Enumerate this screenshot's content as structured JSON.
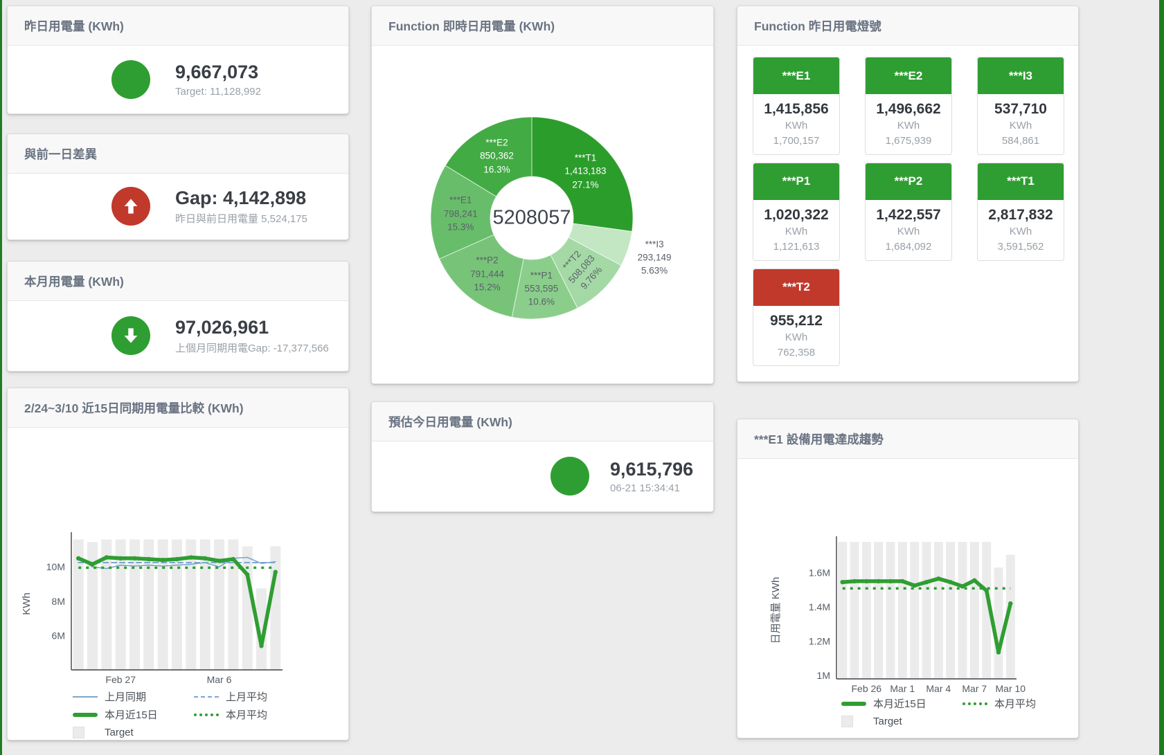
{
  "page": {
    "background": "#ececec",
    "edge_strip_color": "#1e7d21",
    "accent_green": "#2f9e32",
    "accent_red": "#c0392b"
  },
  "cards": {
    "yesterday": {
      "title": "昨日用電量 (KWh)",
      "value": "9,667,073",
      "subtitle": "Target: 11,128,992",
      "indicator": "circle",
      "indicator_color": "#2f9e32"
    },
    "gap": {
      "title": "與前一日差異",
      "value": "Gap: 4,142,898",
      "subtitle": "昨日與前日用電量 5,524,175",
      "indicator": "arrow-up",
      "indicator_color": "#c0392b"
    },
    "month": {
      "title": "本月用電量 (KWh)",
      "value": "97,026,961",
      "subtitle": "上個月同期用電Gap: -17,377,566",
      "indicator": "arrow-down",
      "indicator_color": "#2f9e32"
    },
    "estimate": {
      "title": "預估今日用電量 (KWh)",
      "value": "9,615,796",
      "subtitle": "06-21 15:34:41",
      "indicator": "circle",
      "indicator_color": "#2f9e32"
    },
    "lights": {
      "title": "Function 昨日用電燈號",
      "tiles": [
        {
          "name": "***E1",
          "value": "1,415,856",
          "unit": "KWh",
          "target": "1,700,157",
          "status": "green",
          "header_color": "#2f9e32"
        },
        {
          "name": "***E2",
          "value": "1,496,662",
          "unit": "KWh",
          "target": "1,675,939",
          "status": "green",
          "header_color": "#2f9e32"
        },
        {
          "name": "***I3",
          "value": "537,710",
          "unit": "KWh",
          "target": "584,861",
          "status": "green",
          "header_color": "#2f9e32"
        },
        {
          "name": "***P1",
          "value": "1,020,322",
          "unit": "KWh",
          "target": "1,121,613",
          "status": "green",
          "header_color": "#2f9e32"
        },
        {
          "name": "***P2",
          "value": "1,422,557",
          "unit": "KWh",
          "target": "1,684,092",
          "status": "green",
          "header_color": "#2f9e32"
        },
        {
          "name": "***T1",
          "value": "2,817,832",
          "unit": "KWh",
          "target": "3,591,562",
          "status": "green",
          "header_color": "#2f9e32"
        },
        {
          "name": "***T2",
          "value": "955,212",
          "unit": "KWh",
          "target": "762,358",
          "status": "red",
          "header_color": "#c0392b"
        }
      ]
    }
  },
  "chart_data": [
    {
      "id": "function-realtime-donut",
      "type": "pie",
      "title": "Function 即時日用電量 (KWh)",
      "center_label": "5208057",
      "legend_position": "none",
      "slices": [
        {
          "name": "***T1",
          "value": 1413183,
          "value_label": "1,413,183",
          "pct": 27.1,
          "pct_label": "27.1%",
          "color": "#2b9d2b",
          "label_color": "#ffffff"
        },
        {
          "name": "***I3",
          "value": 293149,
          "value_label": "293,149",
          "pct": 5.63,
          "pct_label": "5.63%",
          "color": "#c2e7c2",
          "label_color": "#5a6068"
        },
        {
          "name": "***T2",
          "value": 508083,
          "value_label": "508,083",
          "pct": 9.76,
          "pct_label": "9.76%",
          "color": "#a4d9a5",
          "label_color": "#5a6068"
        },
        {
          "name": "***P1",
          "value": 553595,
          "value_label": "553,595",
          "pct": 10.6,
          "pct_label": "10.6%",
          "color": "#8bce8c",
          "label_color": "#5a6068"
        },
        {
          "name": "***P2",
          "value": 791444,
          "value_label": "791,444",
          "pct": 15.2,
          "pct_label": "15.2%",
          "color": "#77c479",
          "label_color": "#5a6068"
        },
        {
          "name": "***E1",
          "value": 798241,
          "value_label": "798,241",
          "pct": 15.3,
          "pct_label": "15.3%",
          "color": "#68bd6a",
          "label_color": "#5a6068"
        },
        {
          "name": "***E2",
          "value": 850362,
          "value_label": "850,362",
          "pct": 16.3,
          "pct_label": "16.3%",
          "color": "#43ab44",
          "label_color": "#ffffff"
        }
      ]
    },
    {
      "id": "compare15",
      "type": "line",
      "title": "2/24~3/10 近15日同期用電量比較 (KWh)",
      "ylabel": "KWh",
      "ylim": [
        4000000,
        11700000
      ],
      "yticks": [
        {
          "v": 6000000,
          "label": "6M"
        },
        {
          "v": 8000000,
          "label": "8M"
        },
        {
          "v": 10000000,
          "label": "10M"
        }
      ],
      "categories": [
        "2/24",
        "2/25",
        "2/26",
        "2/27",
        "2/28",
        "3/1",
        "3/2",
        "3/3",
        "3/4",
        "3/5",
        "3/6",
        "3/7",
        "3/8",
        "3/9",
        "3/10"
      ],
      "xticks": [
        {
          "index": 3,
          "label": "Feb 27"
        },
        {
          "index": 10,
          "label": "Mar 6"
        }
      ],
      "grid": false,
      "target_bars": {
        "name": "Target",
        "color": "#ebebeb",
        "values": [
          11600000,
          11450000,
          11600000,
          11600000,
          11600000,
          11600000,
          11600000,
          11600000,
          11600000,
          11600000,
          11600000,
          11600000,
          11200000,
          8750000,
          11200000
        ]
      },
      "series": [
        {
          "name": "上月同期",
          "color": "#7aa6cf",
          "width": 1.6,
          "dash": "solid",
          "values": [
            10550000,
            10000000,
            9900000,
            10100000,
            10050000,
            10100000,
            10050000,
            10100000,
            10150000,
            10250000,
            10000000,
            10500000,
            10550000,
            10200000,
            10300000
          ]
        },
        {
          "name": "上月平均",
          "color": "#7aa6cf",
          "width": 2,
          "dash": "dashed",
          "constant": 10250000
        },
        {
          "name": "本月近15日",
          "color": "#2f9e32",
          "width": 5.5,
          "dash": "solid",
          "values": [
            10500000,
            10150000,
            10550000,
            10500000,
            10500000,
            10450000,
            10400000,
            10450000,
            10550000,
            10500000,
            10350000,
            10450000,
            9550000,
            5400000,
            9700000
          ]
        },
        {
          "name": "本月平均",
          "color": "#2f9e32",
          "width": 3.5,
          "dash": "dotted",
          "constant": 9950000
        }
      ],
      "legend": [
        {
          "label": "上月同期",
          "swatch": "line",
          "color": "#7aa6cf"
        },
        {
          "label": "上月平均",
          "swatch": "dashed",
          "color": "#7aa6cf"
        },
        {
          "label": "本月近15日",
          "swatch": "thick",
          "color": "#2f9e32"
        },
        {
          "label": "本月平均",
          "swatch": "dotted",
          "color": "#2f9e32"
        },
        {
          "label": "Target",
          "swatch": "box",
          "color": "#ebebeb"
        }
      ]
    },
    {
      "id": "e1-trend",
      "type": "line",
      "title": "***E1 設備用電達成趨勢",
      "ylabel": "日用電量 KWh",
      "ylim": [
        980000,
        1780000
      ],
      "yticks": [
        {
          "v": 1000000,
          "label": "1M"
        },
        {
          "v": 1200000,
          "label": "1.2M"
        },
        {
          "v": 1400000,
          "label": "1.4M"
        },
        {
          "v": 1600000,
          "label": "1.6M"
        }
      ],
      "categories": [
        "2/24",
        "2/25",
        "2/26",
        "2/27",
        "2/28",
        "3/1",
        "3/2",
        "3/3",
        "3/4",
        "3/5",
        "3/6",
        "3/7",
        "3/8",
        "3/9",
        "3/10"
      ],
      "xticks": [
        {
          "index": 2,
          "label": "Feb 26"
        },
        {
          "index": 5,
          "label": "Mar 1"
        },
        {
          "index": 8,
          "label": "Mar 4"
        },
        {
          "index": 11,
          "label": "Mar 7"
        },
        {
          "index": 14,
          "label": "Mar 10"
        }
      ],
      "grid": false,
      "target_bars": {
        "name": "Target",
        "color": "#ebebeb",
        "values": [
          1780000,
          1780000,
          1780000,
          1780000,
          1780000,
          1780000,
          1780000,
          1780000,
          1780000,
          1780000,
          1780000,
          1780000,
          1780000,
          1630000,
          1705000
        ]
      },
      "series": [
        {
          "name": "本月近15日",
          "color": "#2f9e32",
          "width": 5.5,
          "dash": "solid",
          "values": [
            1545000,
            1550000,
            1550000,
            1550000,
            1550000,
            1550000,
            1525000,
            1545000,
            1565000,
            1545000,
            1520000,
            1555000,
            1495000,
            1135000,
            1420000
          ]
        },
        {
          "name": "本月平均",
          "color": "#2f9e32",
          "width": 3.5,
          "dash": "dotted",
          "constant": 1508000
        }
      ],
      "legend": [
        {
          "label": "本月近15日",
          "swatch": "thick",
          "color": "#2f9e32"
        },
        {
          "label": "本月平均",
          "swatch": "dotted",
          "color": "#2f9e32"
        },
        {
          "label": "Target",
          "swatch": "box",
          "color": "#ebebeb"
        }
      ]
    }
  ]
}
